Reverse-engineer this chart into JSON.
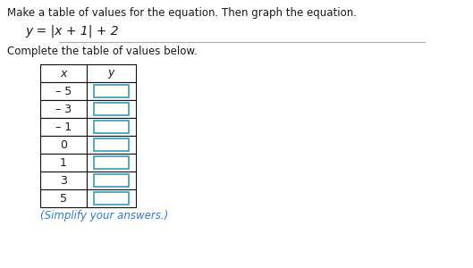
{
  "title_line": "Make a table of values for the equation. Then graph the equation.",
  "equation_parts": [
    "y = |x + 1| + 2"
  ],
  "subtitle": "Complete the table of values below.",
  "simplify_note": "(Simplify your answers.)",
  "x_values": [
    "– 5",
    "– 3",
    "– 1",
    "0",
    "1",
    "3",
    "5"
  ],
  "col_headers": [
    "x",
    "y"
  ],
  "background_color": "#ffffff",
  "text_color": "#1a1a1a",
  "blue_color": "#3377cc",
  "input_box_color": "#3399bb",
  "sep_line_color": "#aaaaaa",
  "table_border_color": "#111111"
}
